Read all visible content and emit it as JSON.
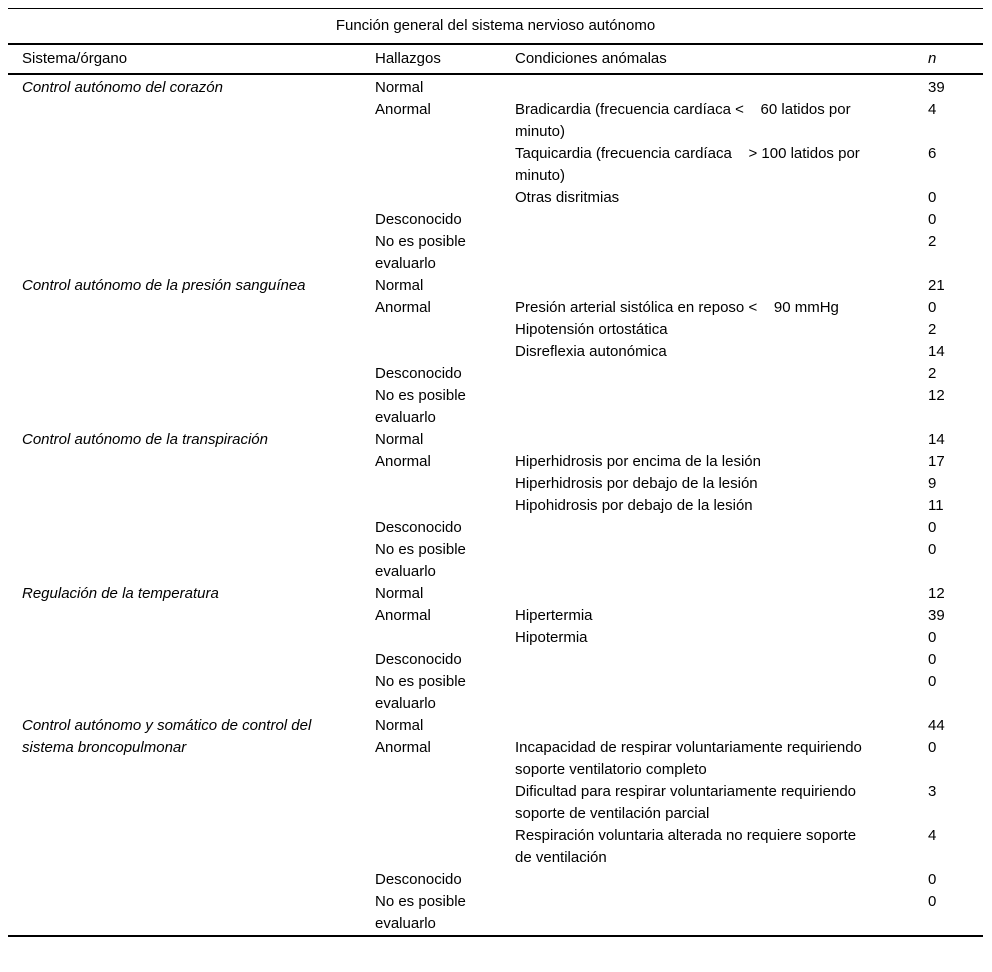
{
  "table": {
    "title": "Función general del sistema nervioso autónomo",
    "headers": {
      "system": "Sistema/órgano",
      "findings": "Hallazgos",
      "conditions": "Condiciones anómalas",
      "n": "n"
    },
    "groups": [
      {
        "system": "Control autónomo del corazón",
        "rows": [
          {
            "finding": "Normal",
            "condition": "",
            "n": "39"
          },
          {
            "finding": "Anormal",
            "condition": "Bradicardia (frecuencia cardíaca <    60 latidos por\nminuto)",
            "n": "4"
          },
          {
            "finding": "",
            "condition": "Taquicardia (frecuencia cardíaca    > 100 latidos por\nminuto)",
            "n": "6"
          },
          {
            "finding": "",
            "condition": "Otras disritmias",
            "n": "0"
          },
          {
            "finding": "Desconocido",
            "condition": "",
            "n": "0"
          },
          {
            "finding": "No es posible\nevaluarlo",
            "condition": "",
            "n": "2"
          }
        ]
      },
      {
        "system": "Control autónomo de la presión sanguínea",
        "rows": [
          {
            "finding": "Normal",
            "condition": "",
            "n": "21"
          },
          {
            "finding": "Anormal",
            "condition": "Presión arterial sistólica en reposo <    90 mmHg",
            "n": "0"
          },
          {
            "finding": "",
            "condition": "Hipotensión ortostática",
            "n": "2"
          },
          {
            "finding": "",
            "condition": "Disreflexia autonómica",
            "n": "14"
          },
          {
            "finding": "Desconocido",
            "condition": "",
            "n": "2"
          },
          {
            "finding": "No es posible\nevaluarlo",
            "condition": "",
            "n": "12"
          }
        ]
      },
      {
        "system": "Control autónomo de la transpiración",
        "rows": [
          {
            "finding": "Normal",
            "condition": "",
            "n": "14"
          },
          {
            "finding": "Anormal",
            "condition": "Hiperhidrosis por encima de la lesión",
            "n": "17"
          },
          {
            "finding": "",
            "condition": "Hiperhidrosis por debajo de la lesión",
            "n": "9"
          },
          {
            "finding": "",
            "condition": "Hipohidrosis por debajo de la lesión",
            "n": "11"
          },
          {
            "finding": "Desconocido",
            "condition": "",
            "n": "0"
          },
          {
            "finding": "No es posible\nevaluarlo",
            "condition": "",
            "n": "0"
          }
        ]
      },
      {
        "system": "Regulación de la temperatura",
        "rows": [
          {
            "finding": "Normal",
            "condition": "",
            "n": "12"
          },
          {
            "finding": "Anormal",
            "condition": "Hipertermia",
            "n": "39"
          },
          {
            "finding": "",
            "condition": "Hipotermia",
            "n": "0"
          },
          {
            "finding": "Desconocido",
            "condition": "",
            "n": "0"
          },
          {
            "finding": "No es posible\nevaluarlo",
            "condition": "",
            "n": "0"
          }
        ]
      },
      {
        "system": "Control autónomo y somático de control del\nsistema broncopulmonar",
        "rows": [
          {
            "finding": "Normal",
            "condition": "",
            "n": "44"
          },
          {
            "finding": "Anormal",
            "condition": "Incapacidad de respirar voluntariamente requiriendo\nsoporte ventilatorio completo",
            "n": "0"
          },
          {
            "finding": "",
            "condition": "Dificultad para respirar voluntariamente requiriendo\nsoporte de ventilación parcial",
            "n": "3"
          },
          {
            "finding": "",
            "condition": "Respiración voluntaria alterada no requiere soporte\nde ventilación",
            "n": "4"
          },
          {
            "finding": "Desconocido",
            "condition": "",
            "n": "0"
          },
          {
            "finding": "No es posible\nevaluarlo",
            "condition": "",
            "n": "0"
          }
        ]
      }
    ]
  }
}
